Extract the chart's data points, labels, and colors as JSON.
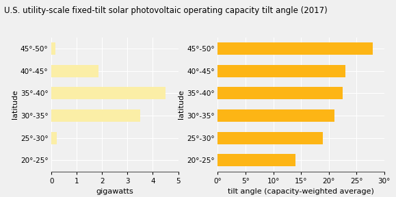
{
  "title": "U.S. utility-scale fixed-tilt solar photovoltaic operating capacity tilt angle (2017)",
  "categories": [
    "45°-50°",
    "40°-45°",
    "35°-40°",
    "30°-35°",
    "25°-30°",
    "20°-25°"
  ],
  "gigawatts": [
    0.15,
    1.85,
    4.5,
    3.5,
    0.2,
    0.0
  ],
  "tilt_angles": [
    28,
    23,
    22.5,
    21,
    19,
    14
  ],
  "bar_color_left": "#FBEEA6",
  "bar_color_right": "#FDB515",
  "left_xlabel": "gigawatts",
  "right_xlabel": "tilt angle (capacity-weighted average)",
  "left_xlim": [
    0,
    5
  ],
  "right_xlim": [
    0,
    30
  ],
  "left_xticks": [
    0,
    1,
    2,
    3,
    4,
    5
  ],
  "right_xticks": [
    0,
    5,
    10,
    15,
    20,
    25,
    30
  ],
  "right_xticklabels": [
    "0°",
    "5°",
    "10°",
    "15°",
    "20°",
    "25°",
    "30°"
  ],
  "ylabel": "latitude",
  "background_color": "#f0f0f0",
  "grid_color": "#ffffff",
  "title_fontsize": 8.5,
  "tick_fontsize": 7.5,
  "label_fontsize": 8
}
